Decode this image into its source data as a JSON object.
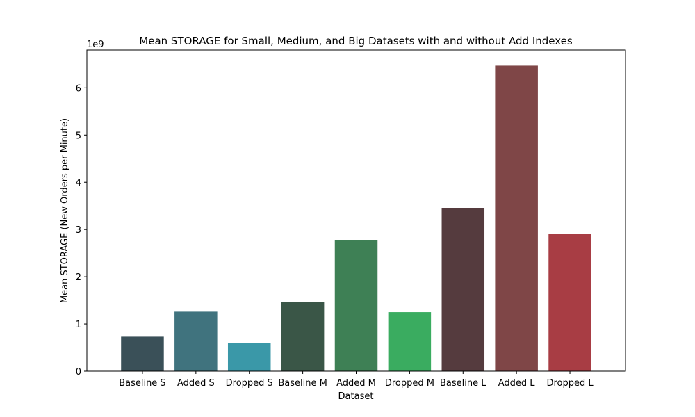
{
  "chart_data": {
    "type": "bar",
    "title": "Mean STORAGE for Small, Medium, and Big Datasets with and without Add Indexes",
    "xlabel": "Dataset",
    "ylabel": "Mean STORAGE (New Orders per Minute)",
    "y_offset_label": "1e9",
    "ylim": [
      0,
      6800000000
    ],
    "yticks": [
      0,
      1000000000,
      2000000000,
      3000000000,
      4000000000,
      5000000000,
      6000000000
    ],
    "ytick_labels": [
      "0",
      "1",
      "2",
      "3",
      "4",
      "5",
      "6"
    ],
    "grid": false,
    "legend": "none",
    "categories": [
      "Baseline S",
      "Added S",
      "Dropped S",
      "Baseline M",
      "Added M",
      "Dropped M",
      "Baseline L",
      "Added L",
      "Dropped L"
    ],
    "values": [
      730000000,
      1260000000,
      600000000,
      1470000000,
      2770000000,
      1250000000,
      3450000000,
      6470000000,
      2910000000
    ],
    "colors": [
      "#3a5058",
      "#40737e",
      "#3a98a8",
      "#3a5647",
      "#3e8055",
      "#3aac60",
      "#553b3e",
      "#7f4647",
      "#a83d44"
    ]
  }
}
